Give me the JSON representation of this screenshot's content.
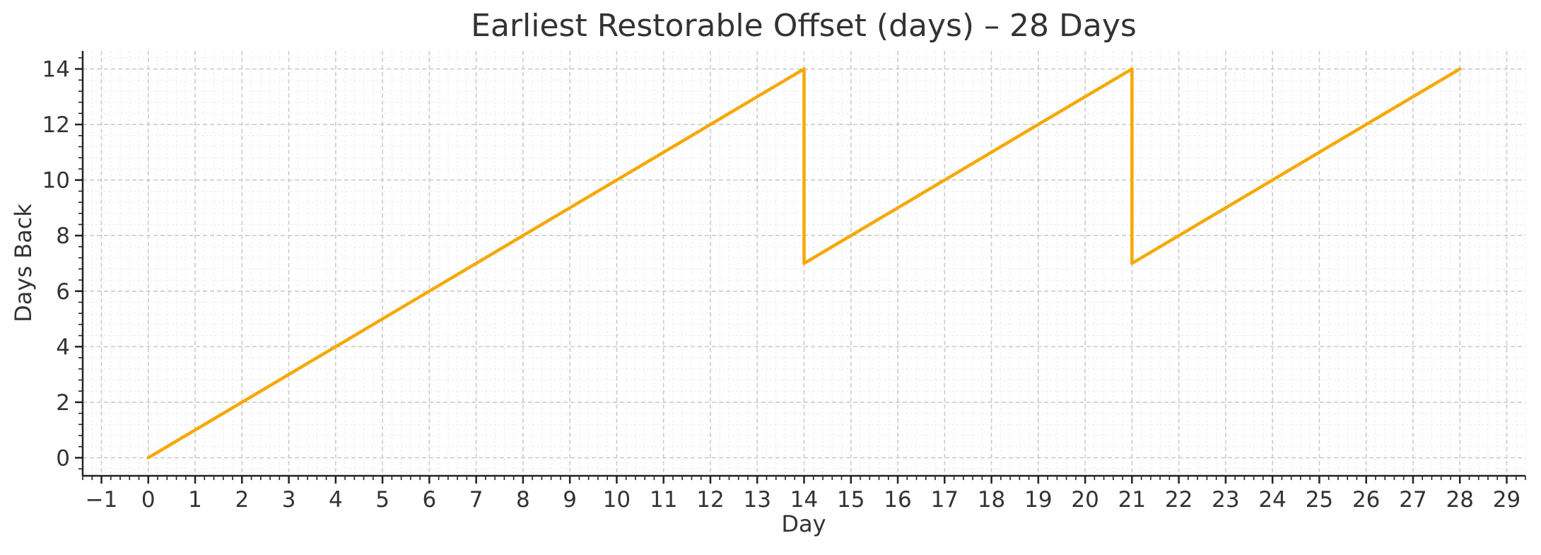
{
  "chart_data": {
    "type": "line",
    "title": "Earliest Restorable Offset (days) – 28 Days",
    "xlabel": "Day",
    "ylabel": "Days Back",
    "xlim": [
      -1.4,
      29.4
    ],
    "ylim": [
      -0.65,
      14.65
    ],
    "x_ticks": [
      -1,
      0,
      1,
      2,
      3,
      4,
      5,
      6,
      7,
      8,
      9,
      10,
      11,
      12,
      13,
      14,
      15,
      16,
      17,
      18,
      19,
      20,
      21,
      22,
      23,
      24,
      25,
      26,
      27,
      28,
      29
    ],
    "x_tick_labels": [
      "−1",
      "0",
      "1",
      "2",
      "3",
      "4",
      "5",
      "6",
      "7",
      "8",
      "9",
      "10",
      "11",
      "12",
      "13",
      "14",
      "15",
      "16",
      "17",
      "18",
      "19",
      "20",
      "21",
      "22",
      "23",
      "24",
      "25",
      "26",
      "27",
      "28",
      "29"
    ],
    "y_ticks": [
      0,
      2,
      4,
      6,
      8,
      10,
      12,
      14
    ],
    "y_tick_labels": [
      "0",
      "2",
      "4",
      "6",
      "8",
      "10",
      "12",
      "14"
    ],
    "grid": true,
    "series": [
      {
        "color": "#f5a800",
        "x": [
          0,
          14,
          14,
          21,
          21,
          28
        ],
        "y": [
          0,
          14,
          7,
          14,
          7,
          14
        ]
      }
    ]
  }
}
